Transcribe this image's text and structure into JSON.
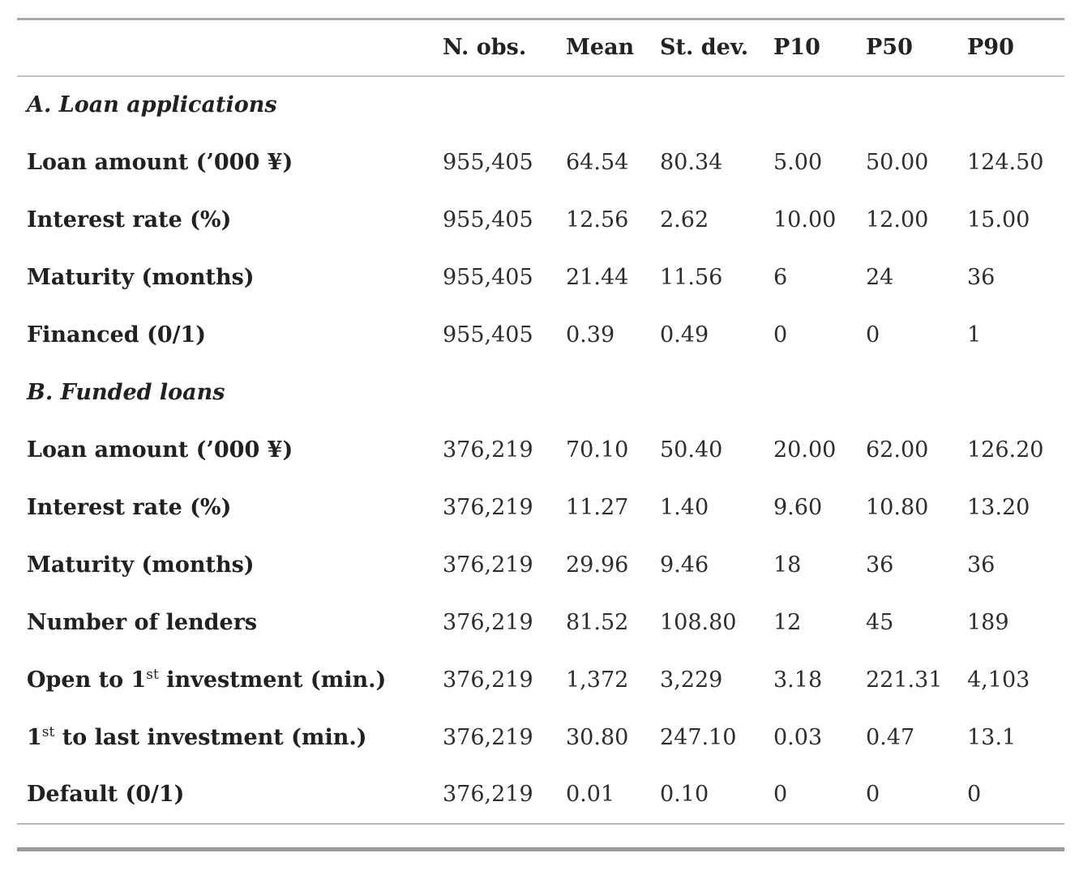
{
  "page": {
    "background": "#ffffff",
    "text_color": "#232323",
    "rule_light": "#b7b7b7",
    "rule_dark": "#9a9a9a"
  },
  "table": {
    "columns": [
      "",
      "N. obs.",
      "Mean",
      "St. dev.",
      "P10",
      "P50",
      "P90"
    ],
    "sections": [
      {
        "header": "A. Loan applications",
        "rows": [
          {
            "label": "Loan amount (’000 ¥)",
            "values": [
              "955,405",
              "64.54",
              "80.34",
              "5.00",
              "50.00",
              "124.50"
            ]
          },
          {
            "label": "Interest rate (%)",
            "values": [
              "955,405",
              "12.56",
              "2.62",
              "10.00",
              "12.00",
              "15.00"
            ]
          },
          {
            "label": "Maturity (months)",
            "values": [
              "955,405",
              "21.44",
              "11.56",
              "6",
              "24",
              "36"
            ]
          },
          {
            "label": "Financed (0/1)",
            "values": [
              "955,405",
              "0.39",
              "0.49",
              "0",
              "0",
              "1"
            ]
          }
        ]
      },
      {
        "header": "B. Funded loans",
        "rows": [
          {
            "label": "Loan amount (’000 ¥)",
            "values": [
              "376,219",
              "70.10",
              "50.40",
              "20.00",
              "62.00",
              "126.20"
            ]
          },
          {
            "label": "Interest rate (%)",
            "values": [
              "376,219",
              "11.27",
              "1.40",
              "9.60",
              "10.80",
              "13.20"
            ]
          },
          {
            "label": "Maturity (months)",
            "values": [
              "376,219",
              "29.96",
              "9.46",
              "18",
              "36",
              "36"
            ]
          },
          {
            "label": "Number of lenders",
            "values": [
              "376,219",
              "81.52",
              "108.80",
              "12",
              "45",
              "189"
            ]
          },
          {
            "label_parts": [
              "Open to 1",
              {
                "sup": "st"
              },
              " investment (min.)"
            ],
            "values": [
              "376,219",
              "1,372",
              "3,229",
              "3.18",
              "221.31",
              "4,103"
            ]
          },
          {
            "label_parts": [
              "1",
              {
                "sup": "st"
              },
              " to last investment (min.)"
            ],
            "values": [
              "376,219",
              "30.80",
              "247.10",
              "0.03",
              "0.47",
              "13.1"
            ]
          },
          {
            "label": "Default (0/1)",
            "values": [
              "376,219",
              "0.01",
              "0.10",
              "0",
              "0",
              "0"
            ]
          }
        ]
      }
    ]
  }
}
